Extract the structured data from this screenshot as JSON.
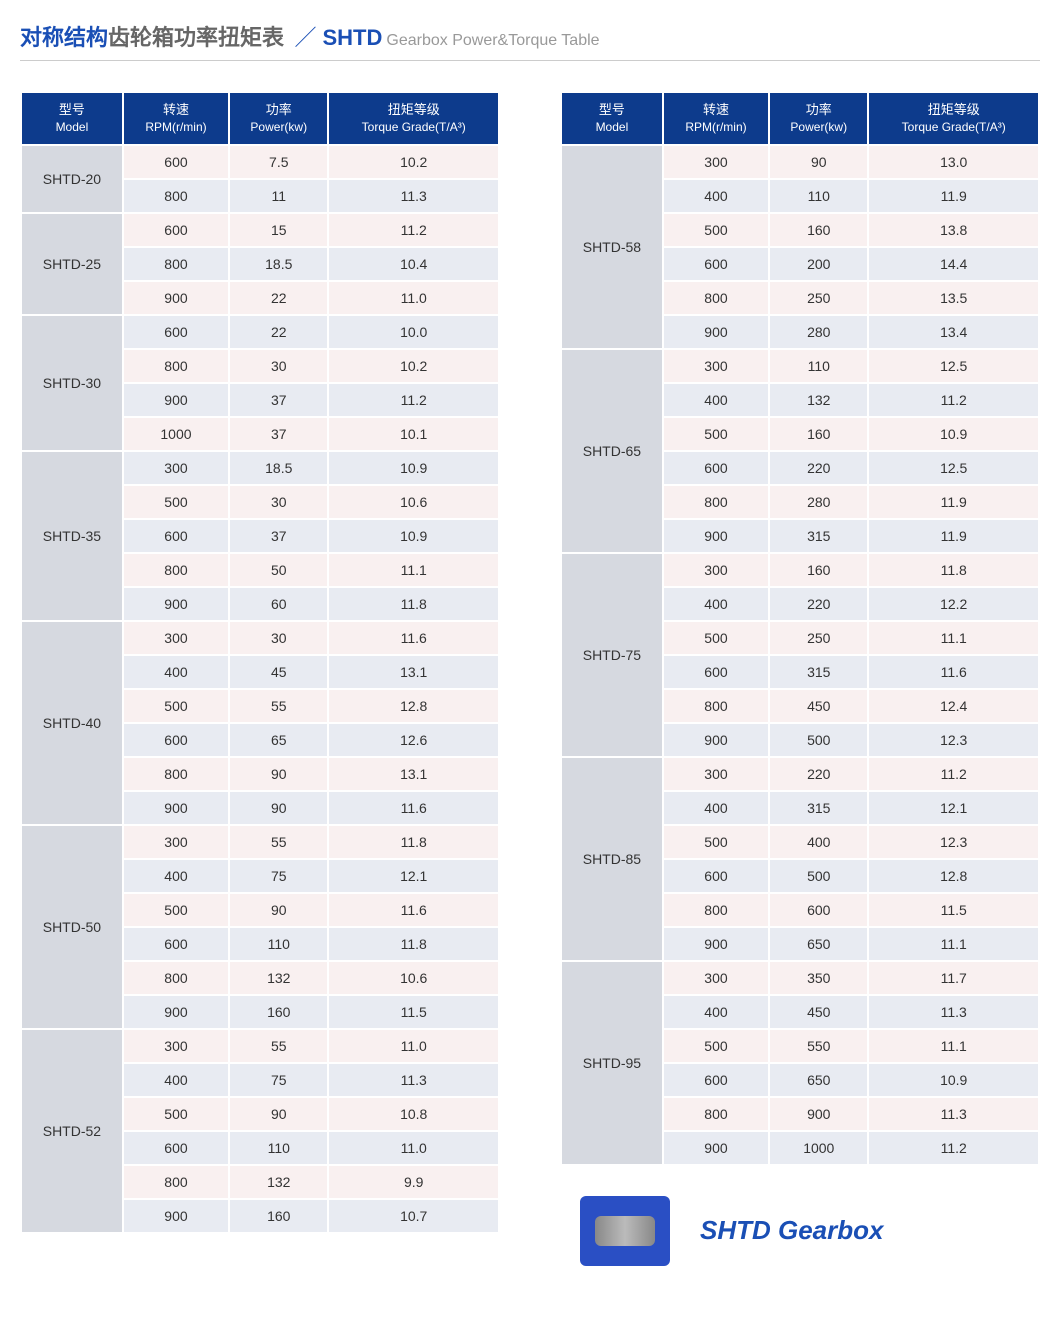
{
  "title": {
    "cn_blue": "对称结构",
    "cn_gray": "齿轮箱功率扭矩表",
    "slash": "／",
    "en_code": "SHTD",
    "en_gray": "Gearbox Power&Torque Table"
  },
  "headers": {
    "model_cn": "型号",
    "model_en": "Model",
    "rpm_cn": "转速",
    "rpm_en": "RPM(r/min)",
    "power_cn": "功率",
    "power_en": "Power(kw)",
    "torque_cn": "扭矩等级",
    "torque_en": "Torque Grade(T/A³)"
  },
  "colors": {
    "header_bg": "#0d3b8c",
    "model_bg": "#d6d9e0",
    "row_odd_bg": "#f9f0f0",
    "row_even_bg": "#e8ebf2",
    "title_blue": "#1a4fb5",
    "title_gray": "#666",
    "subtitle_gray": "#999"
  },
  "left_groups": [
    {
      "model": "SHTD-20",
      "rows": [
        [
          "600",
          "7.5",
          "10.2"
        ],
        [
          "800",
          "11",
          "11.3"
        ]
      ]
    },
    {
      "model": "SHTD-25",
      "rows": [
        [
          "600",
          "15",
          "11.2"
        ],
        [
          "800",
          "18.5",
          "10.4"
        ],
        [
          "900",
          "22",
          "11.0"
        ]
      ]
    },
    {
      "model": "SHTD-30",
      "rows": [
        [
          "600",
          "22",
          "10.0"
        ],
        [
          "800",
          "30",
          "10.2"
        ],
        [
          "900",
          "37",
          "11.2"
        ],
        [
          "1000",
          "37",
          "10.1"
        ]
      ]
    },
    {
      "model": "SHTD-35",
      "rows": [
        [
          "300",
          "18.5",
          "10.9"
        ],
        [
          "500",
          "30",
          "10.6"
        ],
        [
          "600",
          "37",
          "10.9"
        ],
        [
          "800",
          "50",
          "11.1"
        ],
        [
          "900",
          "60",
          "11.8"
        ]
      ]
    },
    {
      "model": "SHTD-40",
      "rows": [
        [
          "300",
          "30",
          "11.6"
        ],
        [
          "400",
          "45",
          "13.1"
        ],
        [
          "500",
          "55",
          "12.8"
        ],
        [
          "600",
          "65",
          "12.6"
        ],
        [
          "800",
          "90",
          "13.1"
        ],
        [
          "900",
          "90",
          "11.6"
        ]
      ]
    },
    {
      "model": "SHTD-50",
      "rows": [
        [
          "300",
          "55",
          "11.8"
        ],
        [
          "400",
          "75",
          "12.1"
        ],
        [
          "500",
          "90",
          "11.6"
        ],
        [
          "600",
          "110",
          "11.8"
        ],
        [
          "800",
          "132",
          "10.6"
        ],
        [
          "900",
          "160",
          "11.5"
        ]
      ]
    },
    {
      "model": "SHTD-52",
      "rows": [
        [
          "300",
          "55",
          "11.0"
        ],
        [
          "400",
          "75",
          "11.3"
        ],
        [
          "500",
          "90",
          "10.8"
        ],
        [
          "600",
          "110",
          "11.0"
        ],
        [
          "800",
          "132",
          "9.9"
        ],
        [
          "900",
          "160",
          "10.7"
        ]
      ]
    }
  ],
  "right_groups": [
    {
      "model": "SHTD-58",
      "rows": [
        [
          "300",
          "90",
          "13.0"
        ],
        [
          "400",
          "110",
          "11.9"
        ],
        [
          "500",
          "160",
          "13.8"
        ],
        [
          "600",
          "200",
          "14.4"
        ],
        [
          "800",
          "250",
          "13.5"
        ],
        [
          "900",
          "280",
          "13.4"
        ]
      ]
    },
    {
      "model": "SHTD-65",
      "rows": [
        [
          "300",
          "110",
          "12.5"
        ],
        [
          "400",
          "132",
          "11.2"
        ],
        [
          "500",
          "160",
          "10.9"
        ],
        [
          "600",
          "220",
          "12.5"
        ],
        [
          "800",
          "280",
          "11.9"
        ],
        [
          "900",
          "315",
          "11.9"
        ]
      ]
    },
    {
      "model": "SHTD-75",
      "rows": [
        [
          "300",
          "160",
          "11.8"
        ],
        [
          "400",
          "220",
          "12.2"
        ],
        [
          "500",
          "250",
          "11.1"
        ],
        [
          "600",
          "315",
          "11.6"
        ],
        [
          "800",
          "450",
          "12.4"
        ],
        [
          "900",
          "500",
          "12.3"
        ]
      ]
    },
    {
      "model": "SHTD-85",
      "rows": [
        [
          "300",
          "220",
          "11.2"
        ],
        [
          "400",
          "315",
          "12.1"
        ],
        [
          "500",
          "400",
          "12.3"
        ],
        [
          "600",
          "500",
          "12.8"
        ],
        [
          "800",
          "600",
          "11.5"
        ],
        [
          "900",
          "650",
          "11.1"
        ]
      ]
    },
    {
      "model": "SHTD-95",
      "rows": [
        [
          "300",
          "350",
          "11.7"
        ],
        [
          "400",
          "450",
          "11.3"
        ],
        [
          "500",
          "550",
          "11.1"
        ],
        [
          "600",
          "650",
          "10.9"
        ],
        [
          "800",
          "900",
          "11.3"
        ],
        [
          "900",
          "1000",
          "11.2"
        ]
      ]
    }
  ],
  "footer": {
    "label": "SHTD Gearbox"
  }
}
